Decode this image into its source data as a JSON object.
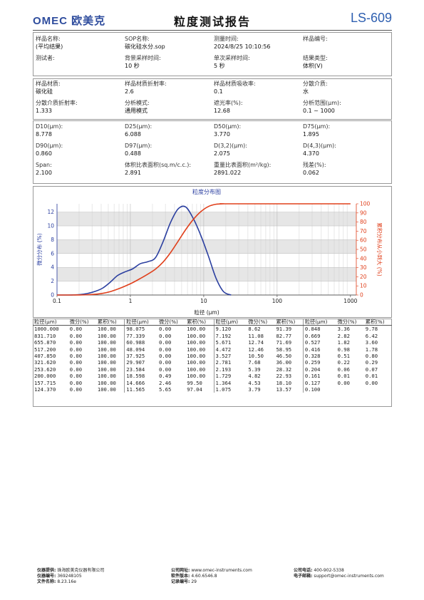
{
  "header": {
    "brand": "OMEC 欧美克",
    "title": "粒度测试报告",
    "model": "LS-609"
  },
  "info1": [
    [
      {
        "label": "样品名称:",
        "value": "(平均结果)"
      },
      {
        "label": "SOP名称:",
        "value": "碳化硅水分.sop"
      },
      {
        "label": "测量时间:",
        "value": "2024/8/25 10:10:56"
      },
      {
        "label": "样品编号:",
        "value": ""
      }
    ],
    [
      {
        "label": "测试者:",
        "value": ""
      },
      {
        "label": "背景采样时间:",
        "value": "10 秒"
      },
      {
        "label": "单次采样时间:",
        "value": "5 秒"
      },
      {
        "label": "结果类型:",
        "value": "体积(V)"
      }
    ]
  ],
  "info2": [
    [
      {
        "label": "样品材质:",
        "value": "碳化硅"
      },
      {
        "label": "样品材质折射率:",
        "value": "2.6"
      },
      {
        "label": "样品材质吸收率:",
        "value": "0.1"
      },
      {
        "label": "分散介质:",
        "value": "水"
      }
    ],
    [
      {
        "label": "分散介质折射率:",
        "value": "1.333"
      },
      {
        "label": "分析模式:",
        "value": "通用模式"
      },
      {
        "label": "遮光率(%):",
        "value": "12.68"
      },
      {
        "label": "分析范围(μm):",
        "value": "0.1 ~ 1000"
      }
    ]
  ],
  "info3": [
    [
      {
        "label": "D10(μm):",
        "value": "8.778"
      },
      {
        "label": "D25(μm):",
        "value": "6.088"
      },
      {
        "label": "D50(μm):",
        "value": "3.770"
      },
      {
        "label": "D75(μm):",
        "value": "1.895"
      }
    ],
    [
      {
        "label": "D90(μm):",
        "value": "0.860"
      },
      {
        "label": "D97(μm):",
        "value": "0.488"
      },
      {
        "label": "D(3,2)(μm):",
        "value": "2.075"
      },
      {
        "label": "D(4,3)(μm):",
        "value": "4.370"
      }
    ],
    [
      {
        "label": "Span:",
        "value": "2.100"
      },
      {
        "label": "体积比表面积(sq.m/c.c.):",
        "value": "2.891"
      },
      {
        "label": "重量比表面积(m²/kg):",
        "value": "2891.022"
      },
      {
        "label": "残差(%):",
        "value": "0.062"
      }
    ]
  ],
  "chart_data": {
    "type": "line",
    "title": "粒度分布图",
    "xlabel": "粒径 (μm)",
    "ylabel_left": "微分分布 (%)",
    "ylabel_right": "累积分布从小到大 (%)",
    "x_scale": "log",
    "xlim": [
      0.1,
      1200
    ],
    "ylim_left": [
      0,
      13.2
    ],
    "ylim_right": [
      0,
      100
    ],
    "x_ticks": [
      "0.1",
      "1",
      "10",
      "100",
      "1000"
    ],
    "y_ticks_left": [
      "0",
      "2",
      "4",
      "6",
      "8",
      "10",
      "12"
    ],
    "y_ticks_right": [
      "0",
      "10",
      "20",
      "30",
      "40",
      "50",
      "60",
      "70",
      "80",
      "90",
      "100"
    ],
    "grid": true,
    "colors": {
      "differential": "#2b3fa0",
      "cumulative": "#e0401c"
    },
    "series": [
      {
        "name": "微分分布",
        "axis": "left",
        "x": [
          0.1,
          0.127,
          0.161,
          0.204,
          0.259,
          0.328,
          0.416,
          0.527,
          0.669,
          0.848,
          1.075,
          1.364,
          1.729,
          2.193,
          2.781,
          3.527,
          4.472,
          5.671,
          7.192,
          9.12,
          11.565,
          14.666,
          18.598,
          23.584
        ],
        "y": [
          0,
          0,
          0.01,
          0.06,
          0.22,
          0.51,
          0.98,
          1.82,
          2.82,
          3.36,
          3.79,
          4.53,
          4.82,
          5.39,
          7.68,
          10.5,
          12.46,
          12.74,
          11.08,
          8.62,
          5.65,
          2.46,
          0.49,
          0
        ]
      },
      {
        "name": "累积分布",
        "axis": "right",
        "x": [
          0.1,
          0.127,
          0.161,
          0.204,
          0.259,
          0.328,
          0.416,
          0.527,
          0.669,
          0.848,
          1.075,
          1.364,
          1.729,
          2.193,
          2.781,
          3.527,
          4.472,
          5.671,
          7.192,
          9.12,
          11.565,
          14.666,
          18.598,
          23.584,
          1000
        ],
        "y": [
          0,
          0,
          0.01,
          0.07,
          0.29,
          0.8,
          1.78,
          3.6,
          6.42,
          9.78,
          13.57,
          18.1,
          22.93,
          28.32,
          36.0,
          46.5,
          58.95,
          71.69,
          82.77,
          91.39,
          97.04,
          99.5,
          100,
          100,
          100
        ]
      }
    ]
  },
  "table": {
    "headers": [
      "粒径(μm)",
      "微分(%)",
      "累积(%)"
    ],
    "columns": [
      [
        [
          "1000.000",
          "0.00",
          "100.00"
        ],
        [
          "831.710",
          "0.00",
          "100.00"
        ],
        [
          "655.870",
          "0.00",
          "100.00"
        ],
        [
          "517.200",
          "0.00",
          "100.00"
        ],
        [
          "407.850",
          "0.00",
          "100.00"
        ],
        [
          "321.620",
          "0.00",
          "100.00"
        ],
        [
          "253.620",
          "0.00",
          "100.00"
        ],
        [
          "200.000",
          "0.00",
          "100.00"
        ],
        [
          "157.715",
          "0.00",
          "100.00"
        ],
        [
          "124.370",
          "0.00",
          "100.00"
        ]
      ],
      [
        [
          "98.075",
          "0.00",
          "100.00"
        ],
        [
          "77.339",
          "0.00",
          "100.00"
        ],
        [
          "60.988",
          "0.00",
          "100.00"
        ],
        [
          "48.094",
          "0.00",
          "100.00"
        ],
        [
          "37.925",
          "0.00",
          "100.00"
        ],
        [
          "29.907",
          "0.00",
          "100.00"
        ],
        [
          "23.584",
          "0.00",
          "100.00"
        ],
        [
          "18.598",
          "0.49",
          "100.00"
        ],
        [
          "14.666",
          "2.46",
          "99.50"
        ],
        [
          "11.565",
          "5.65",
          "97.04"
        ]
      ],
      [
        [
          "9.120",
          "8.62",
          "91.39"
        ],
        [
          "7.192",
          "11.08",
          "82.77"
        ],
        [
          "5.671",
          "12.74",
          "71.69"
        ],
        [
          "4.472",
          "12.46",
          "58.95"
        ],
        [
          "3.527",
          "10.50",
          "46.50"
        ],
        [
          "2.781",
          "7.68",
          "36.00"
        ],
        [
          "2.193",
          "5.39",
          "28.32"
        ],
        [
          "1.729",
          "4.82",
          "22.93"
        ],
        [
          "1.364",
          "4.53",
          "18.10"
        ],
        [
          "1.075",
          "3.79",
          "13.57"
        ]
      ],
      [
        [
          "0.848",
          "3.36",
          "9.78"
        ],
        [
          "0.669",
          "2.82",
          "6.42"
        ],
        [
          "0.527",
          "1.82",
          "3.60"
        ],
        [
          "0.416",
          "0.98",
          "1.78"
        ],
        [
          "0.328",
          "0.51",
          "0.80"
        ],
        [
          "0.259",
          "0.22",
          "0.29"
        ],
        [
          "0.204",
          "0.06",
          "0.07"
        ],
        [
          "0.161",
          "0.01",
          "0.01"
        ],
        [
          "0.127",
          "0.00",
          "0.00"
        ],
        [
          "0.100",
          "",
          ""
        ]
      ]
    ]
  },
  "footer": {
    "col1": [
      {
        "label": "仪器提供:",
        "value": "珠海欧美克仪器有限公司"
      },
      {
        "label": "仪器编号:",
        "value": "369248105"
      },
      {
        "label": "文件名称:",
        "value": "8.23.16e"
      }
    ],
    "col2": [
      {
        "label": "公司网址:",
        "value": "www.omec-instruments.com"
      },
      {
        "label": "软件版本:",
        "value": "4.60.6546.8"
      },
      {
        "label": "记录编号:",
        "value": "29"
      }
    ],
    "col3": [
      {
        "label": "公司电话:",
        "value": "400-902-5338"
      },
      {
        "label": "电子邮箱:",
        "value": "support@omec-instruments.com"
      }
    ]
  }
}
